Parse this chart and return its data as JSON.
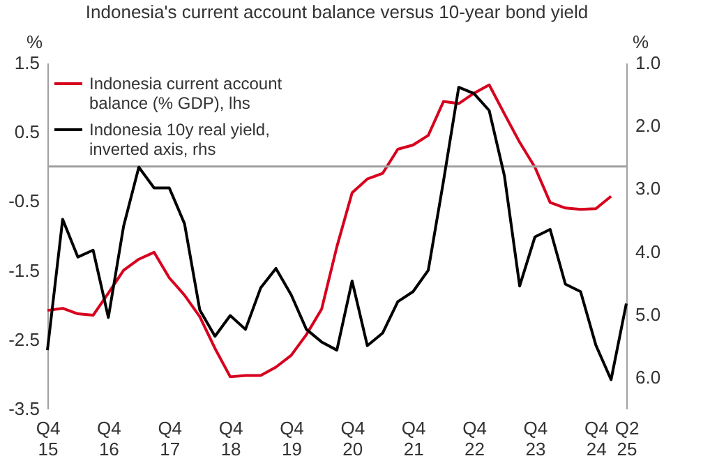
{
  "chart_data": {
    "type": "line",
    "title": "Indonesia's current account balance versus 10-year bond yield",
    "ylabel": "%",
    "y2label": "%",
    "categories": [
      "Q4 15",
      null,
      null,
      null,
      "Q4 16",
      null,
      null,
      null,
      "Q4 17",
      null,
      null,
      null,
      "Q4 18",
      null,
      null,
      null,
      "Q4 19",
      null,
      null,
      null,
      "Q4 20",
      null,
      null,
      null,
      "Q4 21",
      null,
      null,
      null,
      "Q4 22",
      null,
      null,
      null,
      "Q4 23",
      null,
      null,
      null,
      "Q4 24",
      null,
      "Q2 25"
    ],
    "series": [
      {
        "name": "Indonesia current account balance (% GDP), lhs",
        "color": "#d7001e",
        "values": [
          -2.08,
          -2.05,
          -2.13,
          -2.15,
          -1.83,
          -1.5,
          -1.34,
          -1.24,
          -1.61,
          -1.86,
          -2.17,
          -2.63,
          -3.04,
          -3.02,
          -3.02,
          -2.9,
          -2.73,
          -2.43,
          -2.06,
          -1.16,
          -0.38,
          -0.18,
          -0.1,
          0.25,
          0.31,
          0.45,
          0.94,
          0.91,
          1.06,
          1.18,
          0.76,
          0.35,
          -0.01,
          -0.52,
          -0.6,
          -0.62,
          -0.61,
          -0.43,
          null
        ]
      },
      {
        "name": "Indonesia 10y real yield, inverted axis, rhs",
        "color": "#000000",
        "axis": "y2",
        "values": [
          5.57,
          3.49,
          4.09,
          3.98,
          5.05,
          3.6,
          2.66,
          2.99,
          2.99,
          3.56,
          4.93,
          5.35,
          5.02,
          5.24,
          4.58,
          4.27,
          4.69,
          5.24,
          5.44,
          5.57,
          4.47,
          5.5,
          5.3,
          4.8,
          4.64,
          4.3,
          2.88,
          1.39,
          1.49,
          1.76,
          2.8,
          4.55,
          3.77,
          3.65,
          4.52,
          4.64,
          5.49,
          6.04,
          4.83
        ]
      }
    ],
    "ylim": [
      -3.5,
      1.5
    ],
    "yticks": [
      1.5,
      0.5,
      -0.5,
      -1.5,
      -2.5,
      -3.5
    ],
    "y2lim": [
      6.5,
      1.0
    ],
    "y2ticks": [
      {
        "value": 1,
        "label": "1.0"
      },
      {
        "value": 2,
        "label": "2.0"
      },
      {
        "value": 3,
        "label": "3.0"
      },
      {
        "value": 4,
        "label": "4.0"
      },
      {
        "value": 5,
        "label": "5.0"
      },
      {
        "value": 6,
        "label": "6.0"
      }
    ],
    "ref_lines": [
      {
        "axis": "y",
        "value": 0,
        "color": "#a0a0a0"
      }
    ],
    "legend": "top left"
  }
}
